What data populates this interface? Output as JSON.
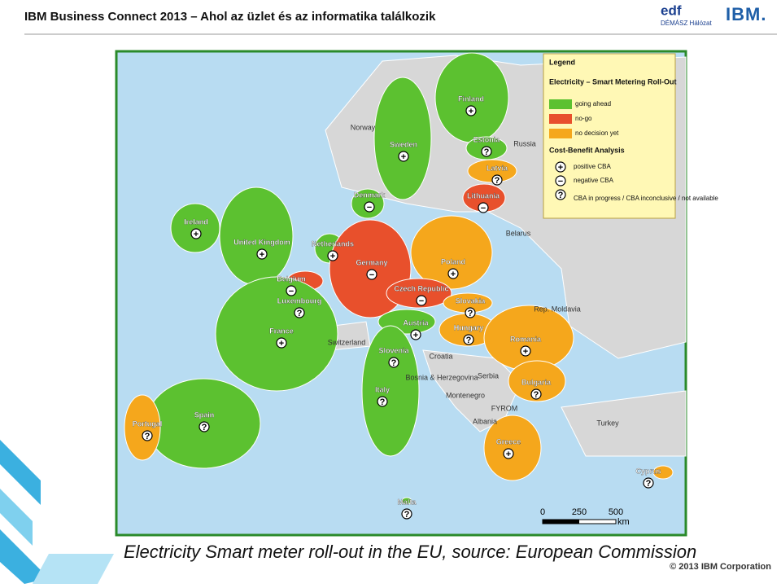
{
  "header": {
    "title": "IBM Business Connect 2013 – Ahol az üzlet és az informatika találkozik",
    "logo_edf": "edf",
    "logo_demasz": "DÉMÁSZ Hálózat",
    "logo_ibm": "IBM."
  },
  "map": {
    "legend": {
      "title": "Legend",
      "subtitle": "Electricity – Smart Metering Roll-Out",
      "status": [
        {
          "label": "going ahead",
          "color": "#5cc130"
        },
        {
          "label": "no-go",
          "color": "#e8502c"
        },
        {
          "label": "no decision yet",
          "color": "#f5a71c"
        }
      ],
      "cba_title": "Cost-Benefit Analysis",
      "cba": [
        {
          "symbol": "+",
          "label": "positive CBA"
        },
        {
          "symbol": "−",
          "label": "negative CBA"
        },
        {
          "symbol": "?",
          "label": "CBA in progress / CBA inconclusive / not available"
        }
      ]
    },
    "countries": [
      {
        "name": "Finland",
        "cba": "+",
        "color": "#5cc130"
      },
      {
        "name": "Sweden",
        "cba": "+",
        "color": "#5cc130"
      },
      {
        "name": "Estonia",
        "cba": "?",
        "color": "#5cc130"
      },
      {
        "name": "Latvia",
        "cba": "?",
        "color": "#f5a71c"
      },
      {
        "name": "Lithuania",
        "cba": "−",
        "color": "#e8502c"
      },
      {
        "name": "Denmark",
        "cba": "−",
        "color": "#5cc130"
      },
      {
        "name": "Ireland",
        "cba": "+",
        "color": "#5cc130"
      },
      {
        "name": "United Kingdom",
        "cba": "+",
        "color": "#5cc130"
      },
      {
        "name": "Netherlands",
        "cba": "+",
        "color": "#5cc130"
      },
      {
        "name": "Germany",
        "cba": "−",
        "color": "#e8502c"
      },
      {
        "name": "Poland",
        "cba": "+",
        "color": "#f5a71c"
      },
      {
        "name": "Belgium",
        "cba": "−",
        "color": "#e8502c"
      },
      {
        "name": "Czech Republic",
        "cba": "−",
        "color": "#e8502c"
      },
      {
        "name": "Luxembourg",
        "cba": "?",
        "color": "#5cc130"
      },
      {
        "name": "Slovakia",
        "cba": "?",
        "color": "#f5a71c"
      },
      {
        "name": "Austria",
        "cba": "+",
        "color": "#5cc130"
      },
      {
        "name": "Hungary",
        "cba": "?",
        "color": "#f5a71c"
      },
      {
        "name": "France",
        "cba": "+",
        "color": "#5cc130"
      },
      {
        "name": "Romania",
        "cba": "+",
        "color": "#f5a71c"
      },
      {
        "name": "Slovenia",
        "cba": "?",
        "color": "#5cc130"
      },
      {
        "name": "Bulgaria",
        "cba": "?",
        "color": "#f5a71c"
      },
      {
        "name": "Italy",
        "cba": "?",
        "color": "#5cc130"
      },
      {
        "name": "Spain",
        "cba": "?",
        "color": "#5cc130"
      },
      {
        "name": "Portugal",
        "cba": "?",
        "color": "#f5a71c"
      },
      {
        "name": "Greece",
        "cba": "+",
        "color": "#f5a71c"
      },
      {
        "name": "Cyprus",
        "cba": "?",
        "color": "#f5a71c"
      },
      {
        "name": "Malta",
        "cba": "?",
        "color": "#5cc130"
      }
    ],
    "other_labels": [
      "Norway",
      "Russia",
      "Belarus",
      "Rep. Moldavia",
      "Turkey",
      "Croatia",
      "Bosnia & Herzegovina",
      "Serbia",
      "Montenegro",
      "FYROM",
      "Albania",
      "Switzerland"
    ],
    "scale": {
      "ticks": [
        0,
        250,
        500
      ],
      "unit": "km"
    }
  },
  "caption": "Electricity Smart meter roll-out in the EU, source: European Commission",
  "copyright": "© 2013 IBM Corporation"
}
